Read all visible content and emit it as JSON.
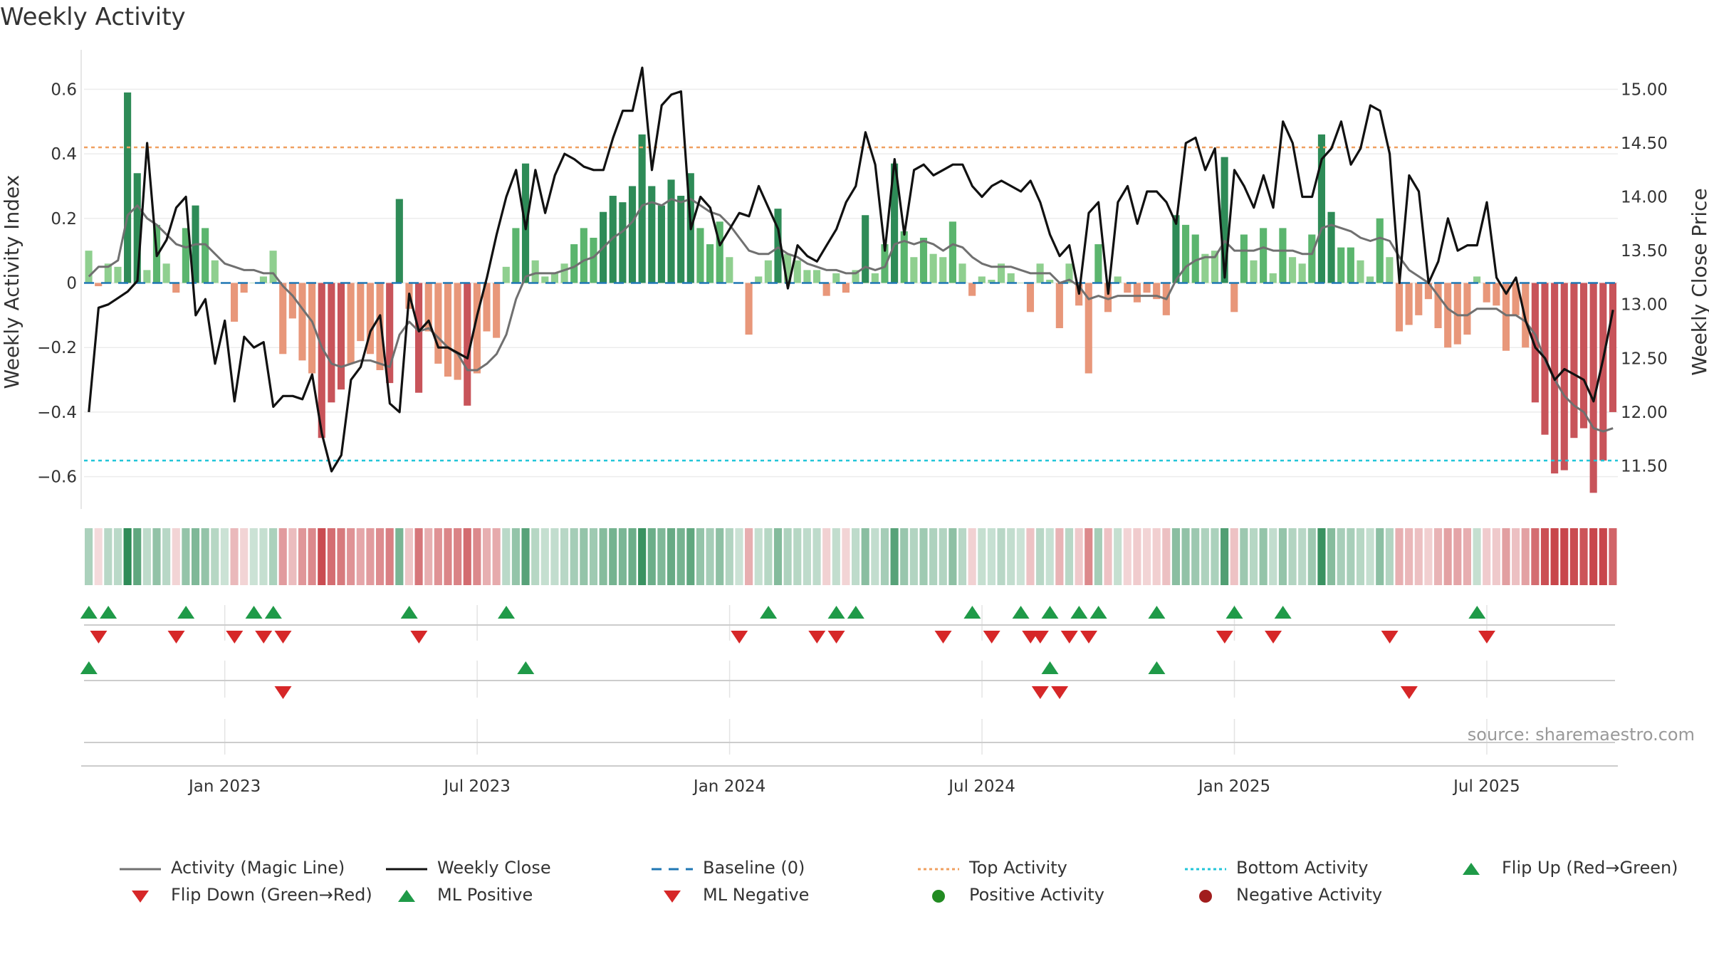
{
  "title": "Weekly Activity",
  "source": "source: sharemaestro.com",
  "colors": {
    "strong_green": "#2e8b57",
    "mid_green": "#5bb56e",
    "light_green": "#8fcf8f",
    "strong_red": "#c8545a",
    "light_red": "#e8977a",
    "magic_line": "#707070",
    "close_line": "#111111",
    "baseline": "#1f77b4",
    "top_line": "#f0a060",
    "bottom_line": "#22c5d8",
    "flip_up": "#1f9a48",
    "flip_down": "#d62728"
  },
  "chart_data": {
    "type": "bar+line",
    "ylabel_left": "Weekly Activity Index",
    "ylabel_right": "Weekly Close Price",
    "left_ticks": [
      "0.6",
      "0.4",
      "0.2",
      "0",
      "−0.2",
      "−0.4",
      "−0.6"
    ],
    "left_tick_values": [
      0.6,
      0.4,
      0.2,
      0,
      -0.2,
      -0.4,
      -0.6
    ],
    "right_ticks": [
      "15.00",
      "14.50",
      "14.00",
      "13.50",
      "13.00",
      "12.50",
      "12.00",
      "11.50"
    ],
    "right_tick_values": [
      15.0,
      14.5,
      14.0,
      13.5,
      13.0,
      12.5,
      12.0,
      11.5
    ],
    "ylim_left": [
      -0.7,
      0.7
    ],
    "ylim_right": [
      11.1,
      15.3
    ],
    "x_ticks": [
      "Jan 2023",
      "Jul 2023",
      "Jan 2024",
      "Jul 2024",
      "Jan 2025",
      "Jul 2025"
    ],
    "x_tick_weeks": [
      14.5,
      40.5,
      66.5,
      92.5,
      118.5,
      144.5
    ],
    "top_activity": 0.42,
    "bottom_activity": -0.55,
    "baseline": 0,
    "activity": [
      0.1,
      -0.01,
      0.06,
      0.05,
      0.59,
      0.34,
      0.04,
      0.18,
      0.06,
      -0.03,
      0.17,
      0.24,
      0.17,
      0.07,
      0,
      -0.12,
      -0.03,
      0,
      0.02,
      0.1,
      -0.22,
      -0.11,
      -0.24,
      -0.28,
      -0.48,
      -0.37,
      -0.33,
      -0.25,
      -0.18,
      -0.22,
      -0.27,
      -0.31,
      0.26,
      -0.08,
      -0.34,
      -0.15,
      -0.25,
      -0.29,
      -0.3,
      -0.38,
      -0.28,
      -0.15,
      -0.17,
      0.05,
      0.17,
      0.37,
      0.07,
      0.02,
      0.03,
      0.06,
      0.12,
      0.17,
      0.14,
      0.22,
      0.27,
      0.25,
      0.3,
      0.46,
      0.3,
      0.24,
      0.32,
      0.27,
      0.34,
      0.17,
      0.12,
      0.19,
      0.08,
      0,
      -0.16,
      0.02,
      0.07,
      0.23,
      0.09,
      0.07,
      0.04,
      0.04,
      -0.04,
      0.03,
      -0.03,
      0.04,
      0.21,
      0.03,
      0.12,
      0.37,
      0.16,
      0.08,
      0.14,
      0.09,
      0.08,
      0.19,
      0.06,
      -0.04,
      0.02,
      0.01,
      0.06,
      0.03,
      0,
      -0.09,
      0.06,
      0.01,
      -0.14,
      0.06,
      -0.07,
      -0.28,
      0.12,
      -0.09,
      0.02,
      -0.03,
      -0.06,
      -0.03,
      -0.05,
      -0.1,
      0.21,
      0.18,
      0.15,
      0.09,
      0.1,
      0.39,
      -0.09,
      0.15,
      0.07,
      0.17,
      0.03,
      0.17,
      0.08,
      0.06,
      0.15,
      0.46,
      0.22,
      0.11,
      0.11,
      0.07,
      0.02,
      0.2,
      0.08,
      -0.15,
      -0.13,
      -0.1,
      -0.05,
      -0.14,
      -0.2,
      -0.19,
      -0.16,
      0.02,
      -0.06,
      -0.07,
      -0.21,
      -0.1,
      -0.2,
      -0.37,
      -0.47,
      -0.59,
      -0.58,
      -0.48,
      -0.45,
      -0.65,
      -0.55,
      -0.4
    ],
    "magic_line": [
      0.02,
      0.05,
      0.05,
      0.07,
      0.21,
      0.24,
      0.2,
      0.18,
      0.15,
      0.12,
      0.11,
      0.12,
      0.12,
      0.09,
      0.06,
      0.05,
      0.04,
      0.04,
      0.03,
      0.03,
      -0.01,
      -0.04,
      -0.08,
      -0.12,
      -0.2,
      -0.25,
      -0.26,
      -0.25,
      -0.24,
      -0.24,
      -0.25,
      -0.26,
      -0.16,
      -0.12,
      -0.15,
      -0.14,
      -0.17,
      -0.2,
      -0.22,
      -0.27,
      -0.27,
      -0.25,
      -0.22,
      -0.16,
      -0.05,
      0.02,
      0.03,
      0.03,
      0.03,
      0.04,
      0.05,
      0.07,
      0.08,
      0.11,
      0.14,
      0.16,
      0.19,
      0.24,
      0.25,
      0.24,
      0.26,
      0.25,
      0.26,
      0.24,
      0.22,
      0.21,
      0.18,
      0.14,
      0.1,
      0.09,
      0.09,
      0.11,
      0.09,
      0.08,
      0.06,
      0.05,
      0.04,
      0.04,
      0.03,
      0.03,
      0.05,
      0.04,
      0.05,
      0.12,
      0.13,
      0.12,
      0.13,
      0.12,
      0.1,
      0.12,
      0.11,
      0.08,
      0.06,
      0.05,
      0.05,
      0.05,
      0.04,
      0.03,
      0.03,
      0.03,
      0,
      0.01,
      -0.01,
      -0.05,
      -0.04,
      -0.05,
      -0.04,
      -0.04,
      -0.04,
      -0.04,
      -0.04,
      -0.05,
      0.01,
      0.05,
      0.07,
      0.08,
      0.08,
      0.13,
      0.1,
      0.1,
      0.1,
      0.11,
      0.1,
      0.1,
      0.1,
      0.09,
      0.09,
      0.17,
      0.18,
      0.17,
      0.16,
      0.14,
      0.13,
      0.14,
      0.13,
      0.08,
      0.04,
      0.02,
      0,
      -0.04,
      -0.08,
      -0.1,
      -0.1,
      -0.08,
      -0.08,
      -0.08,
      -0.1,
      -0.1,
      -0.12,
      -0.16,
      -0.24,
      -0.3,
      -0.35,
      -0.38,
      -0.4,
      -0.45,
      -0.46,
      -0.45
    ],
    "weekly_close": [
      12.0,
      12.97,
      13.0,
      13.06,
      13.12,
      13.22,
      14.5,
      13.45,
      13.6,
      13.9,
      14.0,
      12.9,
      13.05,
      12.45,
      12.85,
      12.1,
      12.7,
      12.6,
      12.65,
      12.05,
      12.15,
      12.15,
      12.12,
      12.35,
      11.8,
      11.45,
      11.6,
      12.3,
      12.42,
      12.75,
      12.9,
      12.08,
      12.0,
      13.1,
      12.75,
      12.85,
      12.6,
      12.6,
      12.55,
      12.5,
      12.9,
      13.25,
      13.65,
      14.0,
      14.25,
      13.7,
      14.25,
      13.85,
      14.2,
      14.4,
      14.35,
      14.28,
      14.25,
      14.25,
      14.55,
      14.8,
      14.8,
      15.2,
      14.25,
      14.85,
      14.95,
      14.98,
      13.7,
      14.0,
      13.9,
      13.55,
      13.7,
      13.85,
      13.82,
      14.1,
      13.9,
      13.7,
      13.15,
      13.55,
      13.45,
      13.4,
      13.55,
      13.7,
      13.95,
      14.1,
      14.6,
      14.3,
      13.5,
      14.35,
      13.65,
      14.25,
      14.3,
      14.2,
      14.25,
      14.3,
      14.3,
      14.1,
      14.0,
      14.1,
      14.15,
      14.1,
      14.05,
      14.15,
      13.95,
      13.65,
      13.45,
      13.55,
      13.1,
      13.85,
      13.95,
      13.1,
      13.95,
      14.1,
      13.75,
      14.05,
      14.05,
      13.95,
      13.75,
      14.5,
      14.55,
      14.25,
      14.45,
      13.25,
      14.25,
      14.1,
      13.9,
      14.2,
      13.9,
      14.7,
      14.5,
      14.0,
      14.0,
      14.35,
      14.45,
      14.7,
      14.3,
      14.45,
      14.85,
      14.8,
      14.4,
      13.2,
      14.2,
      14.05,
      13.2,
      13.4,
      13.8,
      13.5,
      13.55,
      13.55,
      13.95,
      13.25,
      13.1,
      13.25,
      12.85,
      12.6,
      12.5,
      12.3,
      12.4,
      12.35,
      12.3,
      12.1,
      12.5,
      12.95
    ],
    "flip_up_weeks": [
      0,
      2,
      10,
      17,
      19,
      33,
      43,
      70,
      77,
      79,
      91,
      96,
      99,
      102,
      104,
      110,
      118,
      123,
      143
    ],
    "flip_down_weeks": [
      1,
      9,
      15,
      18,
      20,
      34,
      67,
      75,
      77,
      88,
      93,
      97,
      98,
      101,
      103,
      117,
      122,
      134,
      144
    ],
    "ml_positive_weeks": [
      0,
      45,
      99,
      110
    ],
    "ml_negative_weeks": [
      20,
      98,
      100,
      136
    ]
  },
  "legend": [
    {
      "label": "Activity (Magic Line)",
      "symbol": "line-gray"
    },
    {
      "label": "Weekly Close",
      "symbol": "line-black"
    },
    {
      "label": "Baseline (0)",
      "symbol": "dash-blue"
    },
    {
      "label": "Top Activity",
      "symbol": "dot-orange"
    },
    {
      "label": "Bottom Activity",
      "symbol": "dot-cyan"
    },
    {
      "label": "Flip Up (Red→Green)",
      "symbol": "tri-up-green"
    },
    {
      "label": "Flip Down (Green→Red)",
      "symbol": "tri-down-red"
    },
    {
      "label": "ML Positive",
      "symbol": "tri-up-green"
    },
    {
      "label": "ML Negative",
      "symbol": "tri-down-red"
    },
    {
      "label": "Positive Activity",
      "symbol": "circle-green"
    },
    {
      "label": "Negative Activity",
      "symbol": "circle-red"
    }
  ]
}
